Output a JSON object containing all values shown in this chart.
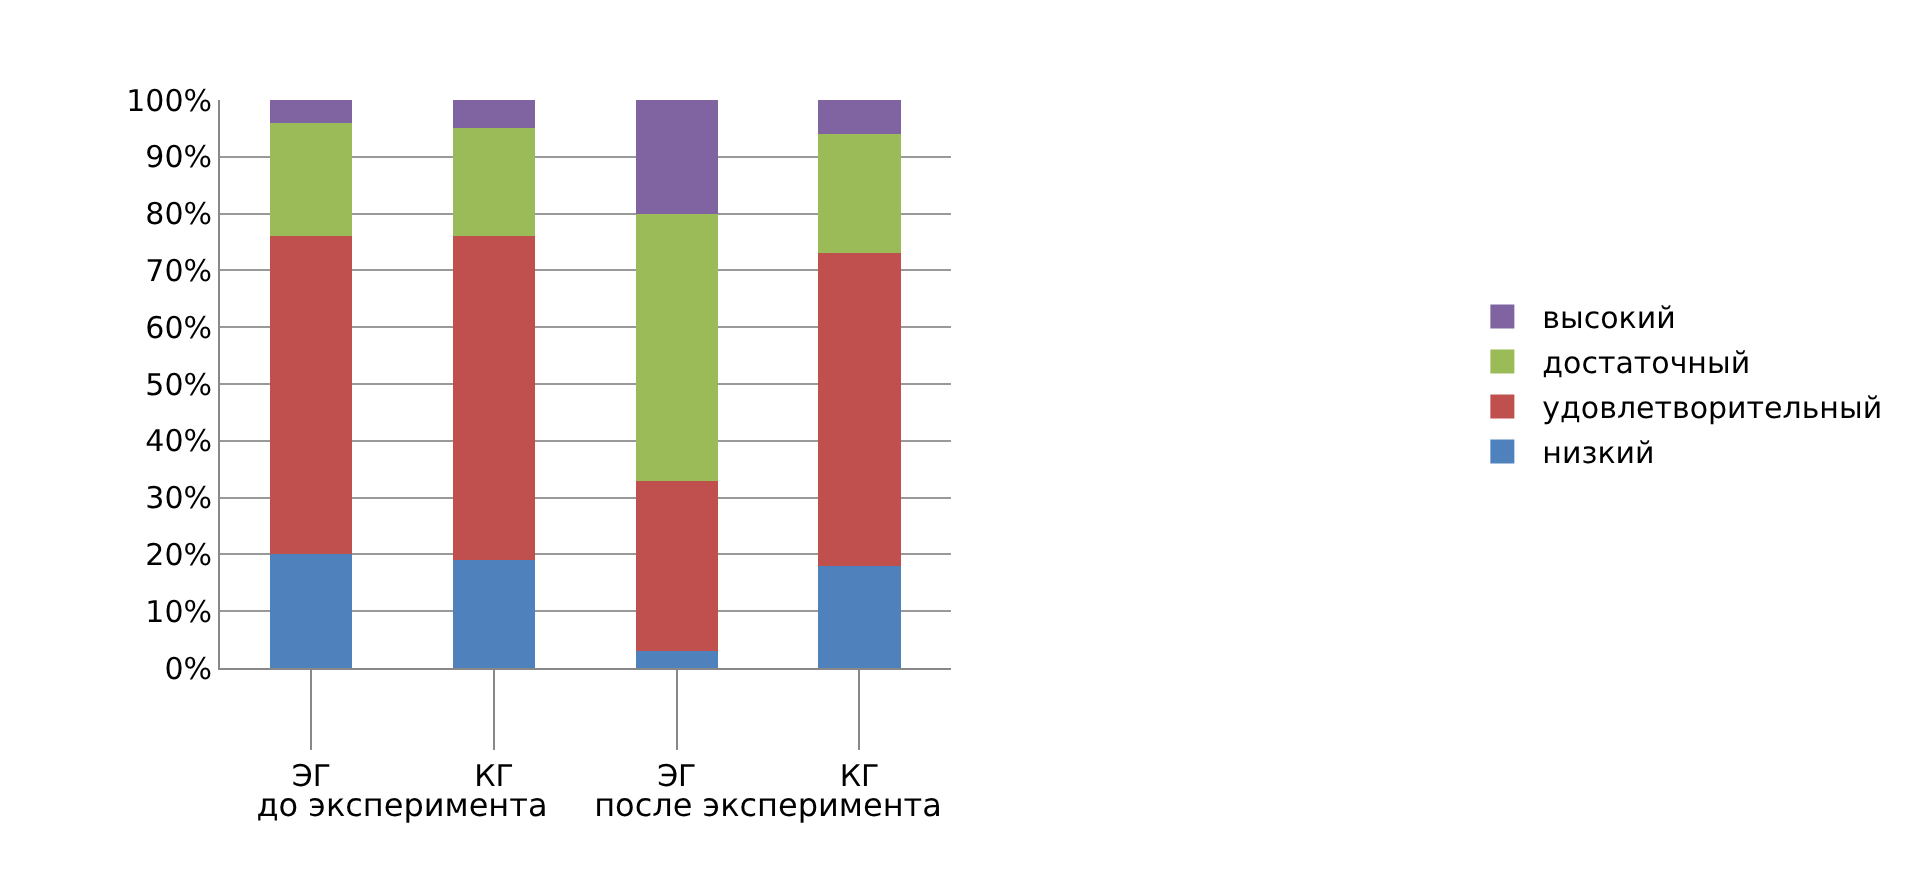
{
  "chart_data": {
    "type": "bar",
    "stacked": true,
    "categories": [
      "ЭГ",
      "КГ",
      "ЭГ",
      "КГ"
    ],
    "series": [
      {
        "name": "низкий",
        "color": "#4f81bd",
        "values": [
          20,
          19,
          3,
          18
        ]
      },
      {
        "name": "удовлетворительный",
        "color": "#c0504d",
        "values": [
          56,
          57,
          30,
          55
        ]
      },
      {
        "name": "достаточный",
        "color": "#9bbb59",
        "values": [
          20,
          19,
          47,
          21
        ]
      },
      {
        "name": "высокий",
        "color": "#8064a2",
        "values": [
          4,
          5,
          20,
          6
        ]
      }
    ],
    "ylim": [
      0,
      100
    ],
    "yticks": [
      {
        "value": 0,
        "label": "0%"
      },
      {
        "value": 10,
        "label": "10%"
      },
      {
        "value": 20,
        "label": "20%"
      },
      {
        "value": 30,
        "label": "30%"
      },
      {
        "value": 40,
        "label": "40%"
      },
      {
        "value": 50,
        "label": "50%"
      },
      {
        "value": 60,
        "label": "60%"
      },
      {
        "value": 70,
        "label": "70%"
      },
      {
        "value": 80,
        "label": "80%"
      },
      {
        "value": 90,
        "label": "90%"
      },
      {
        "value": 100,
        "label": "100%"
      }
    ],
    "annotations": [
      "до эксперимента",
      "после эксперимента"
    ],
    "grid": "y",
    "legend": "right"
  }
}
